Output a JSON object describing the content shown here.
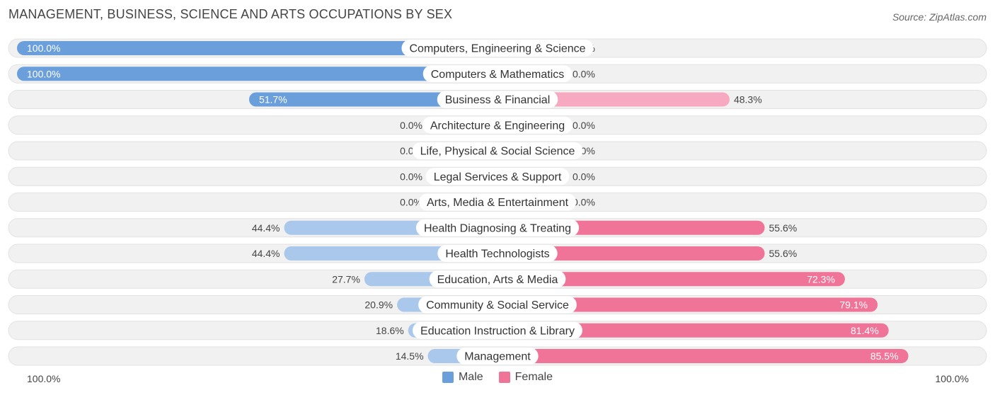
{
  "title": "MANAGEMENT, BUSINESS, SCIENCE AND ARTS OCCUPATIONS BY SEX",
  "source": "Source: ZipAtlas.com",
  "legend": {
    "male_label": "Male",
    "female_label": "Female"
  },
  "axis": {
    "left_label": "100.0%",
    "right_label": "100.0%"
  },
  "colors": {
    "male_strong": "#6a9fdc",
    "male_light": "#a9c8ec",
    "female_strong": "#f07398",
    "female_light": "#f6a9c1",
    "track": "#f1f1f1"
  },
  "chart_data": {
    "type": "bar",
    "orientation": "horizontal-diverging",
    "categories": [
      "Computers, Engineering & Science",
      "Computers & Mathematics",
      "Business & Financial",
      "Architecture & Engineering",
      "Life, Physical & Social Science",
      "Legal Services & Support",
      "Arts, Media & Entertainment",
      "Health Diagnosing & Treating",
      "Health Technologists",
      "Education, Arts & Media",
      "Community & Social Service",
      "Education Instruction & Library",
      "Management"
    ],
    "series": [
      {
        "name": "Male",
        "values": [
          100.0,
          100.0,
          51.7,
          0.0,
          0.0,
          0.0,
          0.0,
          44.4,
          44.4,
          27.7,
          20.9,
          18.6,
          14.5
        ]
      },
      {
        "name": "Female",
        "values": [
          0.0,
          0.0,
          48.3,
          0.0,
          0.0,
          0.0,
          0.0,
          55.6,
          55.6,
          72.3,
          79.1,
          81.4,
          85.5
        ]
      }
    ],
    "xlim": [
      -100,
      100
    ],
    "legend_position": "bottom-center"
  }
}
